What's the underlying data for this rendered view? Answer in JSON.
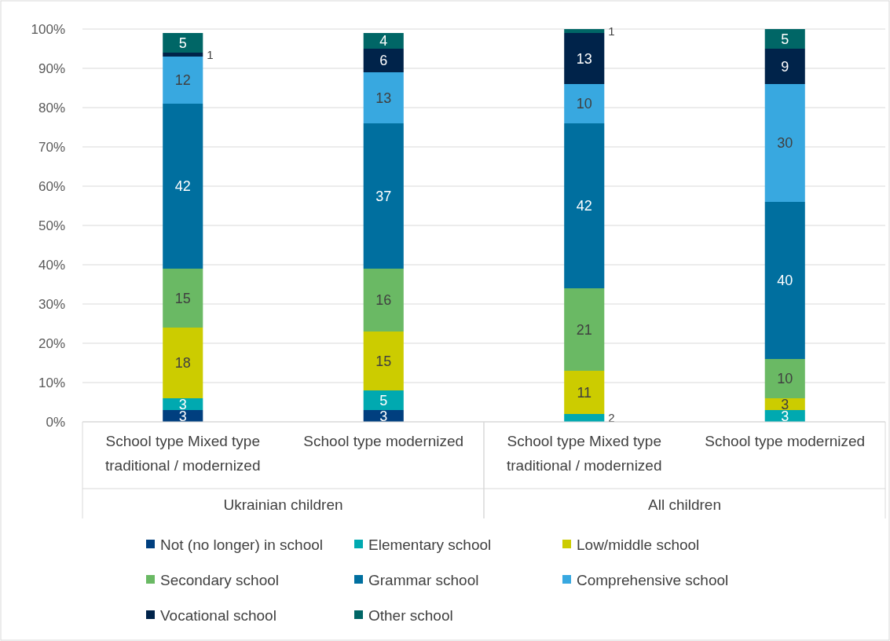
{
  "chart_data": {
    "type": "bar",
    "stacked": true,
    "categories": [
      "School type Mixed type traditional / modernized",
      "School type modernized",
      "School type Mixed type traditional / modernized",
      "School type modernized"
    ],
    "annotations": [
      "Ukrainian children",
      "All children"
    ],
    "ylim": [
      0,
      100
    ],
    "yticks": [
      {
        "value": 0,
        "label": "0%"
      },
      {
        "value": 10,
        "label": "10%"
      },
      {
        "value": 20,
        "label": "20%"
      },
      {
        "value": 30,
        "label": "30%"
      },
      {
        "value": 40,
        "label": "40%"
      },
      {
        "value": 50,
        "label": "50%"
      },
      {
        "value": 60,
        "label": "60%"
      },
      {
        "value": 70,
        "label": "70%"
      },
      {
        "value": 80,
        "label": "80%"
      },
      {
        "value": 90,
        "label": "90%"
      },
      {
        "value": 100,
        "label": "100%"
      }
    ],
    "grid": "y",
    "legend": "bottom",
    "data_labels": true,
    "series": [
      {
        "name": "Not (no longer) in school",
        "color": "#003f7f",
        "values": [
          3,
          3,
          null,
          null
        ]
      },
      {
        "name": "Elementary school",
        "color": "#00a9b0",
        "values": [
          3,
          5,
          2,
          3
        ]
      },
      {
        "name": "Low/middle school",
        "color": "#cccc00",
        "values": [
          18,
          15,
          11,
          3
        ]
      },
      {
        "name": "Secondary school",
        "color": "#6ab964",
        "values": [
          15,
          16,
          21,
          10
        ]
      },
      {
        "name": "Grammar school",
        "color": "#006f9f",
        "values": [
          42,
          37,
          42,
          40
        ]
      },
      {
        "name": "Comprehensive school",
        "color": "#38a8e0",
        "values": [
          12,
          13,
          10,
          30
        ]
      },
      {
        "name": "Vocational school",
        "color": "#00234a",
        "values": [
          1,
          6,
          13,
          9
        ]
      },
      {
        "name": "Other school",
        "color": "#006666",
        "values": [
          5,
          4,
          1,
          5
        ]
      }
    ]
  }
}
